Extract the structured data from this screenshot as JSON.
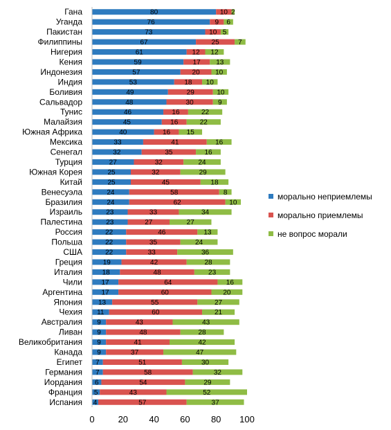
{
  "chart_data": {
    "type": "bar",
    "orientation": "horizontal",
    "stacked": true,
    "categories": [
      "Гана",
      "Уганда",
      "Пакистан",
      "Филиппины",
      "Нигерия",
      "Кения",
      "Индонезия",
      "Индия",
      "Боливия",
      "Сальвадор",
      "Тунис",
      "Малайзия",
      "Южная Африка",
      "Мексика",
      "Сенегал",
      "Турция",
      "Южная Корея",
      "Китай",
      "Венесуэла",
      "Бразилия",
      "Израиль",
      "Палестина",
      "Россия",
      "Польша",
      "США",
      "Греция",
      "Италия",
      "Чили",
      "Аргентина",
      "Япония",
      "Чехия",
      "Австралия",
      "Ливан",
      "Великобритания",
      "Канада",
      "Египет",
      "Германия",
      "Иордания",
      "Франция",
      "Испания"
    ],
    "series": [
      {
        "name": "морально неприемлемы",
        "color": "#2e7bbf",
        "values": [
          80,
          76,
          73,
          67,
          61,
          59,
          57,
          53,
          49,
          48,
          46,
          45,
          40,
          33,
          32,
          27,
          25,
          25,
          24,
          24,
          23,
          23,
          22,
          22,
          22,
          19,
          18,
          17,
          17,
          13,
          11,
          9,
          9,
          9,
          9,
          7,
          7,
          6,
          5,
          4
        ]
      },
      {
        "name": "морально приемлемы",
        "color": "#d9534f",
        "values": [
          10,
          9,
          10,
          25,
          12,
          17,
          20,
          18,
          29,
          30,
          16,
          16,
          16,
          41,
          35,
          32,
          32,
          45,
          58,
          62,
          33,
          27,
          46,
          35,
          33,
          42,
          48,
          64,
          60,
          55,
          60,
          43,
          48,
          41,
          37,
          51,
          58,
          54,
          43,
          57
        ]
      },
      {
        "name": "не вопрос морали",
        "color": "#8fbc45",
        "values": [
          2,
          6,
          5,
          7,
          12,
          13,
          10,
          10,
          10,
          9,
          22,
          22,
          15,
          16,
          16,
          24,
          29,
          18,
          8,
          10,
          34,
          27,
          13,
          24,
          36,
          28,
          23,
          16,
          20,
          27,
          21,
          43,
          28,
          42,
          47,
          30,
          32,
          29,
          52,
          37
        ]
      }
    ],
    "xlim": [
      0,
      100
    ],
    "xticks": [
      "0",
      "20",
      "40",
      "60",
      "80",
      "100"
    ],
    "grid": false,
    "legend_position": "right"
  }
}
